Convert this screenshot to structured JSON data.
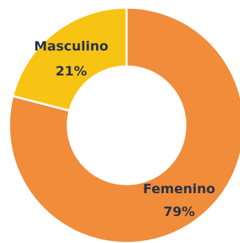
{
  "chart_data": {
    "type": "pie",
    "donut": true,
    "title": "",
    "slices": [
      {
        "label": "Femenino",
        "value_label": "79%",
        "value": 79,
        "color": "#f08c3a"
      },
      {
        "label": "Masculino",
        "value_label": "21%",
        "value": 21,
        "color": "#f7c414"
      }
    ]
  }
}
